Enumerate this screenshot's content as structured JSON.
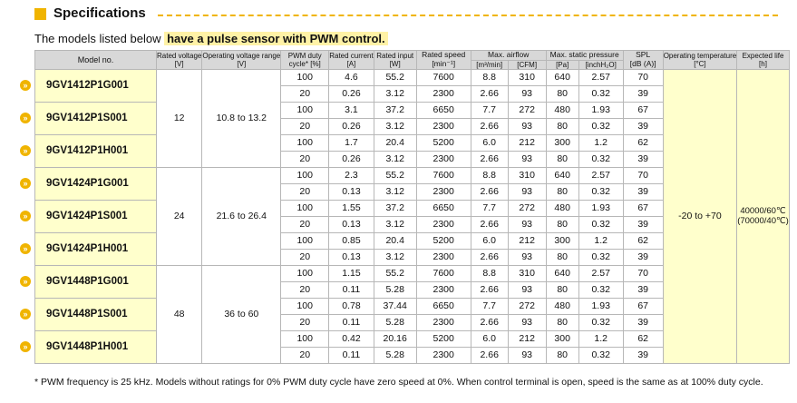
{
  "header": {
    "title": "Specifications",
    "intro_prefix": "The models listed below",
    "intro_highlight": "have a pulse sensor with PWM control."
  },
  "table": {
    "columns": {
      "model": "Model no.",
      "voltage": "Rated voltage",
      "voltage_unit": "[V]",
      "range": "Operating voltage range",
      "range_unit": "[V]",
      "duty": "PWM duty",
      "duty2": "cycle* [%]",
      "current": "Rated current",
      "current_unit": "[A]",
      "input": "Rated input",
      "input_unit": "[W]",
      "speed": "Rated speed",
      "speed_unit": "[min⁻¹]",
      "airflow": "Max. airflow",
      "airflow_unit1": "[m³/min]",
      "airflow_unit2": "[CFM]",
      "pressure": "Max. static pressure",
      "pressure_unit1": "[Pa]",
      "pressure_unit2": "[inchH₂O]",
      "spl": "SPL",
      "spl_unit": "[dB (A)]",
      "temp": "Operating temperature",
      "temp_unit": "[°C]",
      "life": "Expected life",
      "life_unit": "[h]"
    },
    "groups": [
      {
        "voltage": "12",
        "range": "10.8 to 13.2",
        "models": [
          {
            "model": "9GV1412P1G001",
            "rows": [
              [
                "100",
                "4.6",
                "55.2",
                "7600",
                "8.8",
                "310",
                "640",
                "2.57",
                "70"
              ],
              [
                "20",
                "0.26",
                "3.12",
                "2300",
                "2.66",
                "93",
                "80",
                "0.32",
                "39"
              ]
            ]
          },
          {
            "model": "9GV1412P1S001",
            "rows": [
              [
                "100",
                "3.1",
                "37.2",
                "6650",
                "7.7",
                "272",
                "480",
                "1.93",
                "67"
              ],
              [
                "20",
                "0.26",
                "3.12",
                "2300",
                "2.66",
                "93",
                "80",
                "0.32",
                "39"
              ]
            ]
          },
          {
            "model": "9GV1412P1H001",
            "rows": [
              [
                "100",
                "1.7",
                "20.4",
                "5200",
                "6.0",
                "212",
                "300",
                "1.2",
                "62"
              ],
              [
                "20",
                "0.26",
                "3.12",
                "2300",
                "2.66",
                "93",
                "80",
                "0.32",
                "39"
              ]
            ]
          }
        ]
      },
      {
        "voltage": "24",
        "range": "21.6 to 26.4",
        "models": [
          {
            "model": "9GV1424P1G001",
            "rows": [
              [
                "100",
                "2.3",
                "55.2",
                "7600",
                "8.8",
                "310",
                "640",
                "2.57",
                "70"
              ],
              [
                "20",
                "0.13",
                "3.12",
                "2300",
                "2.66",
                "93",
                "80",
                "0.32",
                "39"
              ]
            ]
          },
          {
            "model": "9GV1424P1S001",
            "rows": [
              [
                "100",
                "1.55",
                "37.2",
                "6650",
                "7.7",
                "272",
                "480",
                "1.93",
                "67"
              ],
              [
                "20",
                "0.13",
                "3.12",
                "2300",
                "2.66",
                "93",
                "80",
                "0.32",
                "39"
              ]
            ]
          },
          {
            "model": "9GV1424P1H001",
            "rows": [
              [
                "100",
                "0.85",
                "20.4",
                "5200",
                "6.0",
                "212",
                "300",
                "1.2",
                "62"
              ],
              [
                "20",
                "0.13",
                "3.12",
                "2300",
                "2.66",
                "93",
                "80",
                "0.32",
                "39"
              ]
            ]
          }
        ]
      },
      {
        "voltage": "48",
        "range": "36 to 60",
        "models": [
          {
            "model": "9GV1448P1G001",
            "rows": [
              [
                "100",
                "1.15",
                "55.2",
                "7600",
                "8.8",
                "310",
                "640",
                "2.57",
                "70"
              ],
              [
                "20",
                "0.11",
                "5.28",
                "2300",
                "2.66",
                "93",
                "80",
                "0.32",
                "39"
              ]
            ]
          },
          {
            "model": "9GV1448P1S001",
            "rows": [
              [
                "100",
                "0.78",
                "37.44",
                "6650",
                "7.7",
                "272",
                "480",
                "1.93",
                "67"
              ],
              [
                "20",
                "0.11",
                "5.28",
                "2300",
                "2.66",
                "93",
                "80",
                "0.32",
                "39"
              ]
            ]
          },
          {
            "model": "9GV1448P1H001",
            "rows": [
              [
                "100",
                "0.42",
                "20.16",
                "5200",
                "6.0",
                "212",
                "300",
                "1.2",
                "62"
              ],
              [
                "20",
                "0.11",
                "5.28",
                "2300",
                "2.66",
                "93",
                "80",
                "0.32",
                "39"
              ]
            ]
          }
        ]
      }
    ],
    "temperature": "-20 to +70",
    "life_line1": "40000/60℃",
    "life_line2": "(70000/40℃)"
  },
  "footnote": "* PWM frequency is 25 kHz. Models without ratings for 0% PWM duty cycle have zero speed at 0%. When control terminal is open, speed is the same as at 100% duty cycle.",
  "colors": {
    "accent": "#f0b400",
    "highlight": "#fff2a6",
    "model_bg": "#ffffcc",
    "header_bg": "#d8d8d8"
  },
  "icons": {
    "model_link": "chevron-circle-icon"
  }
}
